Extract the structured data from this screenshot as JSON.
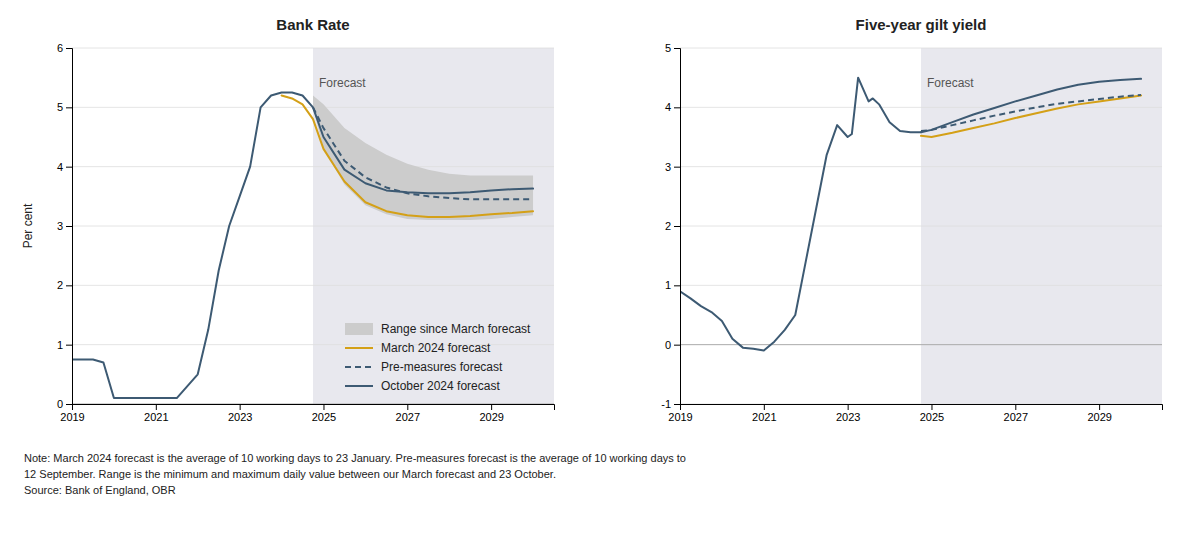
{
  "chart_data": [
    {
      "type": "line",
      "title": "Bank Rate",
      "ylabel": "Per cent",
      "xlim": [
        2019,
        2030.5
      ],
      "xticks": [
        2019,
        2021,
        2023,
        2025,
        2027,
        2029
      ],
      "ylim": [
        0,
        6
      ],
      "yticks": [
        0,
        1,
        2,
        3,
        4,
        5,
        6
      ],
      "grid": true,
      "legend": "lower right",
      "annotations": [
        {
          "text": "Forecast",
          "x": 2024.75
        }
      ],
      "series": [
        {
          "name": "Range since March forecast",
          "type": "area",
          "color": "#cccccc",
          "x": [
            2024.75,
            2025.0,
            2025.5,
            2026.0,
            2026.5,
            2027.0,
            2027.5,
            2028.0,
            2028.5,
            2029.0,
            2029.5,
            2030.0
          ],
          "lower": [
            5.0,
            4.3,
            3.7,
            3.35,
            3.2,
            3.12,
            3.1,
            3.1,
            3.1,
            3.12,
            3.15,
            3.18
          ],
          "upper": [
            5.2,
            5.05,
            4.65,
            4.4,
            4.2,
            4.05,
            3.95,
            3.88,
            3.85,
            3.85,
            3.85,
            3.85
          ]
        },
        {
          "name": "March 2024 forecast",
          "color": "#d4a017",
          "line_style": "solid",
          "x": [
            2024.0,
            2024.25,
            2024.5,
            2024.75,
            2025.0,
            2025.5,
            2026.0,
            2026.5,
            2027.0,
            2027.5,
            2028.0,
            2028.5,
            2029.0,
            2029.5,
            2030.0
          ],
          "values": [
            5.2,
            5.15,
            5.05,
            4.8,
            4.3,
            3.75,
            3.4,
            3.25,
            3.18,
            3.15,
            3.15,
            3.17,
            3.2,
            3.22,
            3.25
          ]
        },
        {
          "name": "Pre-measures forecast",
          "color": "#3d5a73",
          "line_style": "dashed",
          "x": [
            2024.75,
            2025.0,
            2025.5,
            2026.0,
            2026.5,
            2027.0,
            2027.5,
            2028.0,
            2028.5,
            2029.0,
            2029.5,
            2030.0
          ],
          "values": [
            5.0,
            4.65,
            4.1,
            3.82,
            3.65,
            3.55,
            3.5,
            3.47,
            3.45,
            3.45,
            3.45,
            3.45
          ]
        },
        {
          "name": "October 2024 forecast",
          "color": "#3d5a73",
          "line_style": "solid",
          "x": [
            2019.0,
            2019.5,
            2019.75,
            2020.0,
            2020.25,
            2020.5,
            2020.75,
            2021.0,
            2021.5,
            2022.0,
            2022.25,
            2022.5,
            2022.75,
            2023.0,
            2023.25,
            2023.5,
            2023.75,
            2024.0,
            2024.25,
            2024.5,
            2024.75,
            2025.0,
            2025.5,
            2026.0,
            2026.5,
            2027.0,
            2027.5,
            2028.0,
            2028.5,
            2029.0,
            2029.5,
            2030.0
          ],
          "values": [
            0.75,
            0.75,
            0.7,
            0.1,
            0.1,
            0.1,
            0.1,
            0.1,
            0.1,
            0.5,
            1.25,
            2.25,
            3.0,
            3.5,
            4.0,
            5.0,
            5.2,
            5.25,
            5.25,
            5.2,
            5.0,
            4.5,
            3.95,
            3.72,
            3.6,
            3.57,
            3.55,
            3.55,
            3.57,
            3.6,
            3.62,
            3.63
          ]
        }
      ]
    },
    {
      "type": "line",
      "title": "Five-year gilt yield",
      "xlim": [
        2019,
        2030.5
      ],
      "xticks": [
        2019,
        2021,
        2023,
        2025,
        2027,
        2029
      ],
      "ylim": [
        -1,
        5
      ],
      "yticks": [
        -1,
        0,
        1,
        2,
        3,
        4,
        5
      ],
      "grid": true,
      "annotations": [
        {
          "text": "Forecast",
          "x": 2024.75
        }
      ],
      "series": [
        {
          "color": "#3d5a73",
          "line_style": "solid",
          "x": [
            2019.0,
            2019.25,
            2019.5,
            2019.75,
            2020.0,
            2020.25,
            2020.5,
            2020.75,
            2021.0,
            2021.25,
            2021.5,
            2021.75,
            2022.0,
            2022.25,
            2022.5,
            2022.75,
            2023.0,
            2023.1,
            2023.25,
            2023.5,
            2023.6,
            2023.75,
            2024.0,
            2024.25,
            2024.5,
            2024.75
          ],
          "values": [
            0.9,
            0.78,
            0.65,
            0.55,
            0.4,
            0.1,
            -0.05,
            -0.07,
            -0.1,
            0.05,
            0.25,
            0.5,
            1.4,
            2.3,
            3.2,
            3.7,
            3.5,
            3.55,
            4.5,
            4.1,
            4.15,
            4.05,
            3.75,
            3.6,
            3.58,
            3.58
          ]
        },
        {
          "color": "#3d5a73",
          "line_style": "solid",
          "x": [
            2024.75,
            2025.0,
            2025.5,
            2026.0,
            2026.5,
            2027.0,
            2027.5,
            2028.0,
            2028.5,
            2029.0,
            2029.5,
            2030.0
          ],
          "values": [
            3.58,
            3.62,
            3.75,
            3.88,
            3.99,
            4.1,
            4.2,
            4.3,
            4.38,
            4.43,
            4.46,
            4.48
          ]
        },
        {
          "color": "#d4a017",
          "line_style": "solid",
          "x": [
            2024.75,
            2025.0,
            2025.5,
            2026.0,
            2026.5,
            2027.0,
            2027.5,
            2028.0,
            2028.5,
            2029.0,
            2029.5,
            2030.0
          ],
          "values": [
            3.52,
            3.5,
            3.57,
            3.65,
            3.73,
            3.82,
            3.9,
            3.98,
            4.05,
            4.1,
            4.15,
            4.2
          ]
        },
        {
          "color": "#3d5a73",
          "line_style": "dashed",
          "x": [
            2024.75,
            2025.0,
            2025.5,
            2026.0,
            2026.5,
            2027.0,
            2027.5,
            2028.0,
            2028.5,
            2029.0,
            2029.5,
            2030.0
          ],
          "values": [
            3.6,
            3.62,
            3.7,
            3.78,
            3.86,
            3.93,
            4.0,
            4.06,
            4.1,
            4.14,
            4.18,
            4.21
          ]
        }
      ]
    }
  ],
  "notes": [
    "Note: March 2024 forecast is the average of 10 working days to 23 January. Pre-measures forecast is the average of 10 working days to",
    "12 September. Range is the minimum and maximum daily value between our March forecast and 23 October.",
    "Source: Bank of England, OBR"
  ]
}
